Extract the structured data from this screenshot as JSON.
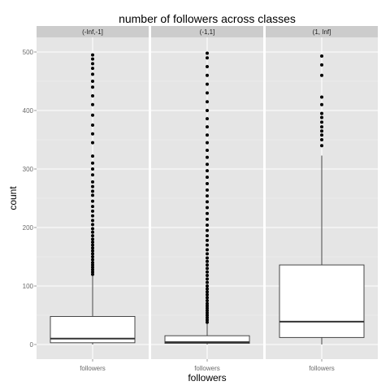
{
  "chart_data": {
    "type": "box",
    "title": "number of followers across classes",
    "xlabel": "followers",
    "ylabel": "count",
    "ylim": [
      -25,
      525
    ],
    "y_ticks": [
      0,
      100,
      200,
      300,
      400,
      500
    ],
    "grid": true,
    "panels": [
      {
        "label": "(-Inf,-1]",
        "category": "followers",
        "box": {
          "whisker_low": 0,
          "q1": 3,
          "median": 10,
          "q3": 48,
          "whisker_high": 118
        },
        "outliers": [
          120,
          124,
          128,
          132,
          136,
          140,
          145,
          150,
          155,
          160,
          165,
          170,
          175,
          180,
          186,
          192,
          198,
          205,
          212,
          220,
          228,
          236,
          245,
          255,
          262,
          270,
          278,
          290,
          300,
          310,
          322,
          345,
          360,
          375,
          392,
          410,
          425,
          440,
          450,
          462,
          472,
          480,
          488,
          495
        ]
      },
      {
        "label": "(-1,1]",
        "category": "followers",
        "box": {
          "whisker_low": 0,
          "q1": 2,
          "median": 4,
          "q3": 15,
          "whisker_high": 36
        },
        "outliers": [
          38,
          42,
          46,
          50,
          54,
          58,
          62,
          66,
          70,
          75,
          80,
          85,
          90,
          95,
          100,
          106,
          112,
          118,
          124,
          130,
          136,
          142,
          148,
          155,
          162,
          170,
          178,
          186,
          195,
          204,
          214,
          224,
          234,
          244,
          254,
          264,
          275,
          286,
          297,
          308,
          320,
          332,
          345,
          358,
          372,
          386,
          400,
          415,
          430,
          445,
          460,
          475,
          490,
          498
        ]
      },
      {
        "label": "(1, Inf]",
        "category": "followers",
        "box": {
          "whisker_low": 0,
          "q1": 12,
          "median": 39,
          "q3": 136,
          "whisker_high": 323
        },
        "outliers": [
          340,
          350,
          358,
          365,
          372,
          380,
          388,
          395,
          410,
          423,
          460,
          478,
          493
        ]
      }
    ]
  }
}
